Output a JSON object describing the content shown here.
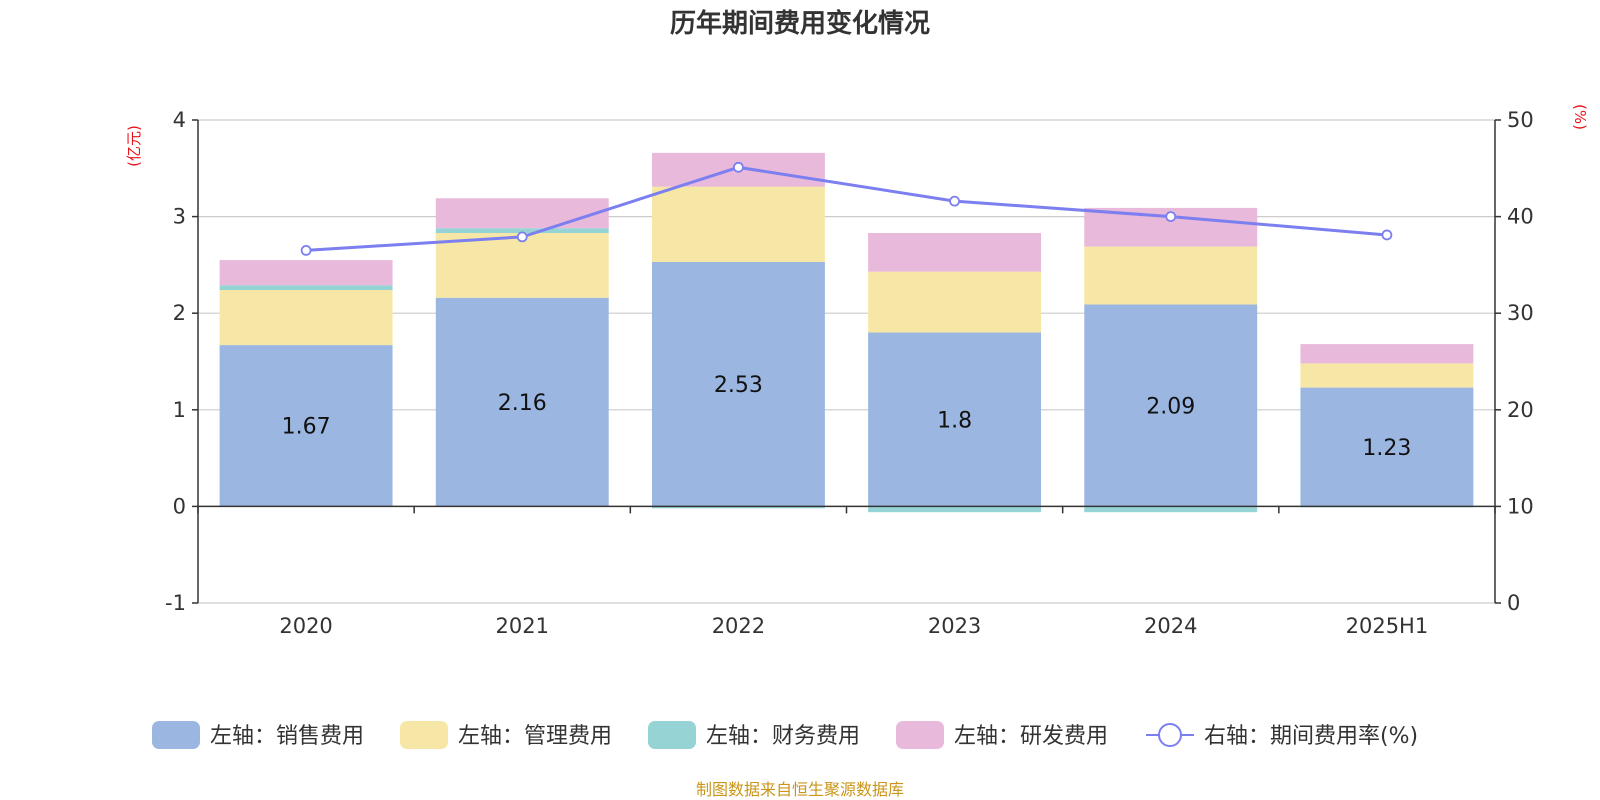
{
  "chart_data": {
    "type": "bar",
    "title": "历年期间费用变化情况",
    "categories": [
      "2020",
      "2021",
      "2022",
      "2023",
      "2024",
      "2025H1"
    ],
    "left_axis": {
      "unit": "(亿元)",
      "ylim": [
        -1,
        4
      ],
      "ticks": [
        -1,
        0,
        1,
        2,
        3,
        4
      ]
    },
    "right_axis": {
      "unit": "(%)",
      "ylim": [
        0,
        50
      ],
      "ticks": [
        0,
        10,
        20,
        30,
        40,
        50
      ]
    },
    "grid": true,
    "legend_position": "bottom",
    "series": [
      {
        "name": "左轴：销售费用",
        "type": "bar",
        "stack": "left",
        "color": "#9bb7e1",
        "values": [
          1.67,
          2.16,
          2.53,
          1.8,
          2.09,
          1.23
        ],
        "labels": [
          "1.67",
          "2.16",
          "2.53",
          "1.8",
          "2.09",
          "1.23"
        ]
      },
      {
        "name": "左轴：管理费用",
        "type": "bar",
        "stack": "left",
        "color": "#f7e7a6",
        "values": [
          0.57,
          0.67,
          0.78,
          0.63,
          0.6,
          0.25
        ]
      },
      {
        "name": "左轴：财务费用",
        "type": "bar",
        "stack": "left",
        "color": "#96d3d5",
        "values": [
          0.05,
          0.05,
          -0.02,
          -0.06,
          -0.06,
          -0.01
        ]
      },
      {
        "name": "左轴：研发费用",
        "type": "bar",
        "stack": "left",
        "color": "#e8b9da",
        "values": [
          0.26,
          0.31,
          0.35,
          0.4,
          0.4,
          0.2
        ]
      },
      {
        "name": "右轴：期间费用率(%)",
        "type": "line",
        "axis": "right",
        "color": "#7b7ff0",
        "values": [
          36.5,
          37.9,
          45.1,
          41.6,
          40.0,
          38.1
        ]
      }
    ]
  },
  "source": "制图数据来自恒生聚源数据库"
}
